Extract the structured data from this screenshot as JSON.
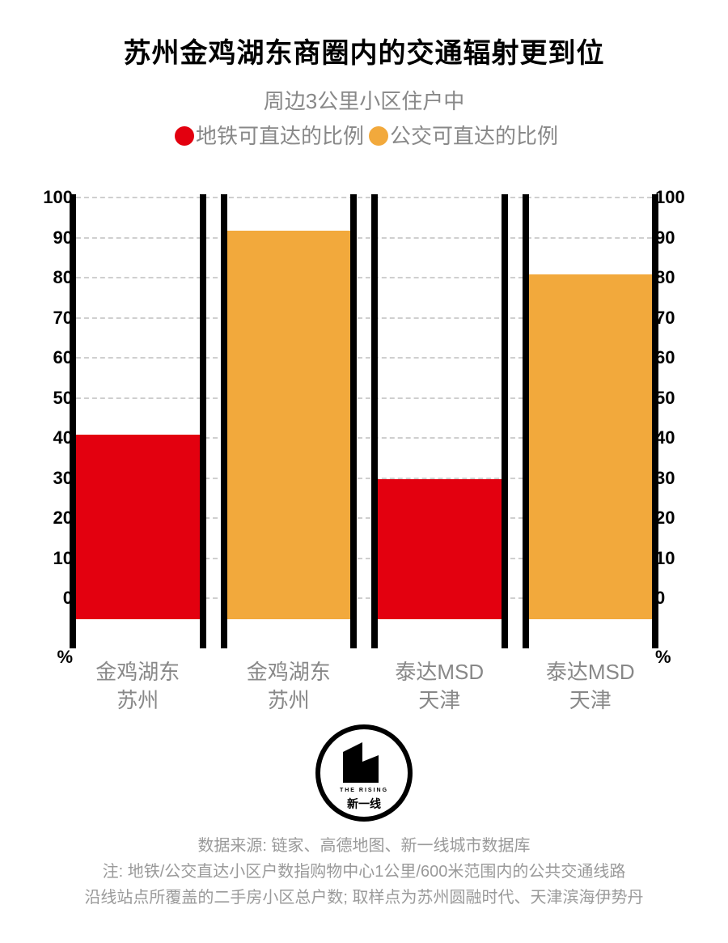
{
  "title": "苏州金鸡湖东商圈内的交通辐射更到位",
  "subtitle": "周边3公里小区住户中",
  "legend": {
    "items": [
      {
        "color": "#e3000f",
        "label": "地铁可直达的比例"
      },
      {
        "color": "#f2a93c",
        "label": "公交可直达的比例"
      }
    ]
  },
  "chart": {
    "type": "bar",
    "ylim": [
      -5,
      100
    ],
    "yticks": [
      0,
      10,
      20,
      30,
      40,
      50,
      60,
      70,
      80,
      90,
      100
    ],
    "unit": "%",
    "grid_color": "#cfcfcf",
    "bar_border_color": "#000000",
    "background_color": "#ffffff",
    "bars": [
      {
        "value": 41,
        "color": "#e3000f",
        "cat_line1": "金鸡湖东",
        "cat_line2": "苏州"
      },
      {
        "value": 92,
        "color": "#f2a93c",
        "cat_line1": "金鸡湖东",
        "cat_line2": "苏州"
      },
      {
        "value": 30,
        "color": "#e3000f",
        "cat_line1": "泰达MSD",
        "cat_line2": "天津"
      },
      {
        "value": 81,
        "color": "#f2a93c",
        "cat_line1": "泰达MSD",
        "cat_line2": "天津"
      }
    ]
  },
  "logo": {
    "small": "THE RISING",
    "main": "新一线"
  },
  "footnotes": {
    "l1": "数据来源: 链家、高德地图、新一线城市数据库",
    "l2": "注: 地铁/公交直达小区户数指购物中心1公里/600米范围内的公共交通线路",
    "l3": "沿线站点所覆盖的二手房小区总户数; 取样点为苏州圆融时代、天津滨海伊势丹"
  }
}
